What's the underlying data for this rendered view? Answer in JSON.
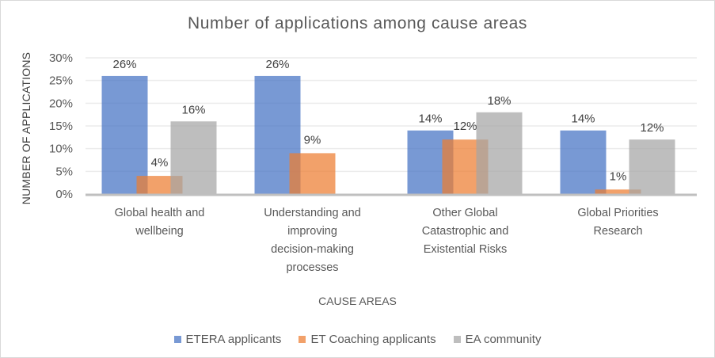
{
  "chart_data": {
    "type": "bar",
    "title": "Number of applications among cause areas",
    "xlabel": "CAUSE AREAS",
    "ylabel": "NUMBER OF APPLICATIONS",
    "ylim": [
      0,
      30
    ],
    "yticks": [
      "0%",
      "5%",
      "10%",
      "15%",
      "20%",
      "25%",
      "30%"
    ],
    "ytick_values": [
      0,
      5,
      10,
      15,
      20,
      25,
      30
    ],
    "grid": true,
    "legend_position": "bottom",
    "categories": [
      [
        "Global health and",
        "wellbeing"
      ],
      [
        "Understanding and",
        "improving",
        "decision-making",
        "processes"
      ],
      [
        "Other Global",
        "Catastrophic and",
        "Existential Risks"
      ],
      [
        "Global Priorities",
        "Research"
      ]
    ],
    "series": [
      {
        "name": "ETERA applicants",
        "color": "#4472c4",
        "values": [
          26,
          26,
          14,
          14
        ],
        "labels": [
          "26%",
          "26%",
          "14%",
          "14%"
        ]
      },
      {
        "name": "ET Coaching applicants",
        "color": "#ed7d31",
        "values": [
          4,
          9,
          12,
          1
        ],
        "labels": [
          "4%",
          "9%",
          "12%",
          "1%"
        ]
      },
      {
        "name": "EA community",
        "color": "#a5a5a5",
        "values": [
          16,
          0,
          18,
          12
        ],
        "labels": [
          "16%",
          "",
          "18%",
          "12%"
        ]
      }
    ]
  }
}
